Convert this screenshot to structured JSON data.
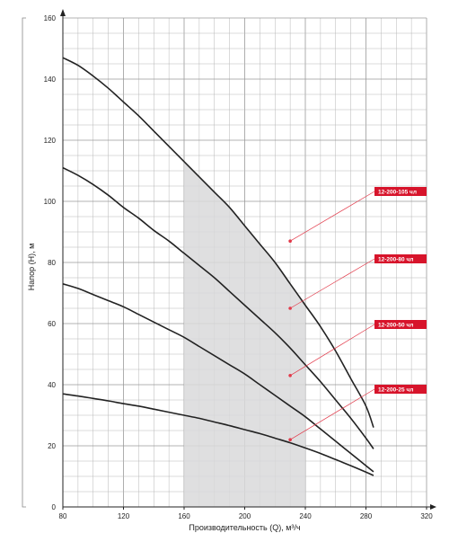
{
  "chart_data": {
    "type": "line",
    "xlabel": "Производительность (Q), м³/ч",
    "ylabel": "Напор (H), м",
    "xlim": [
      80,
      320
    ],
    "ylim": [
      0,
      160
    ],
    "x_major_ticks": [
      80,
      120,
      160,
      200,
      240,
      280,
      320
    ],
    "y_major_ticks": [
      0,
      20,
      40,
      60,
      80,
      100,
      120,
      140,
      160
    ],
    "x_minor_step": 10,
    "y_minor_step": 5,
    "grid": true,
    "shaded_region": {
      "x_from": 160,
      "x_to": 240
    },
    "colors": {
      "curve": "#222222",
      "tag": "#d7142b",
      "leader": "#e23a4a",
      "shade": "#d9d9db",
      "grid": "#b7b7b7"
    },
    "series": [
      {
        "name": "12-200-105 чл",
        "x": [
          80,
          90,
          100,
          110,
          120,
          130,
          140,
          150,
          160,
          170,
          180,
          190,
          200,
          210,
          220,
          230,
          240,
          250,
          260,
          270,
          280,
          285
        ],
        "y": [
          147,
          144.5,
          141,
          137,
          132.5,
          128,
          123,
          118,
          113,
          108,
          103,
          98,
          92,
          86,
          80,
          73,
          66,
          59,
          51,
          42,
          33,
          26
        ]
      },
      {
        "name": "12-200-80 чл",
        "x": [
          80,
          90,
          100,
          110,
          120,
          130,
          140,
          150,
          160,
          170,
          180,
          190,
          200,
          210,
          220,
          230,
          240,
          250,
          260,
          270,
          280,
          285
        ],
        "y": [
          111,
          108.5,
          105.5,
          102,
          98,
          94.5,
          90.5,
          87,
          83,
          79,
          75,
          70.5,
          66,
          61.5,
          57,
          52,
          46.5,
          41,
          35,
          29,
          22.5,
          19
        ]
      },
      {
        "name": "12-200-50 чл",
        "x": [
          80,
          90,
          100,
          110,
          120,
          130,
          140,
          150,
          160,
          170,
          180,
          190,
          200,
          210,
          220,
          230,
          240,
          250,
          260,
          270,
          280,
          285
        ],
        "y": [
          73,
          71.5,
          69.5,
          67.5,
          65.5,
          63,
          60.5,
          58,
          55.5,
          52.5,
          49.5,
          46.5,
          43.5,
          40,
          36.5,
          33,
          29.5,
          25.5,
          21.5,
          17.5,
          13.5,
          11.5
        ]
      },
      {
        "name": "12-200-25 чл",
        "x": [
          80,
          90,
          100,
          110,
          120,
          130,
          140,
          150,
          160,
          170,
          180,
          190,
          200,
          210,
          220,
          230,
          240,
          250,
          260,
          270,
          280,
          285
        ],
        "y": [
          37,
          36.3,
          35.5,
          34.7,
          33.8,
          33,
          32,
          31,
          30,
          29,
          27.8,
          26.6,
          25.3,
          24,
          22.5,
          21,
          19.3,
          17.5,
          15.5,
          13.5,
          11.4,
          10.3
        ]
      }
    ],
    "annotations": [
      {
        "label": "12-200-105 чл",
        "x": 230,
        "y": 87
      },
      {
        "label": "12-200-80 чл",
        "x": 230,
        "y": 65
      },
      {
        "label": "12-200-50 чл",
        "x": 230,
        "y": 43
      },
      {
        "label": "12-200-25 чл",
        "x": 230,
        "y": 22
      }
    ]
  }
}
